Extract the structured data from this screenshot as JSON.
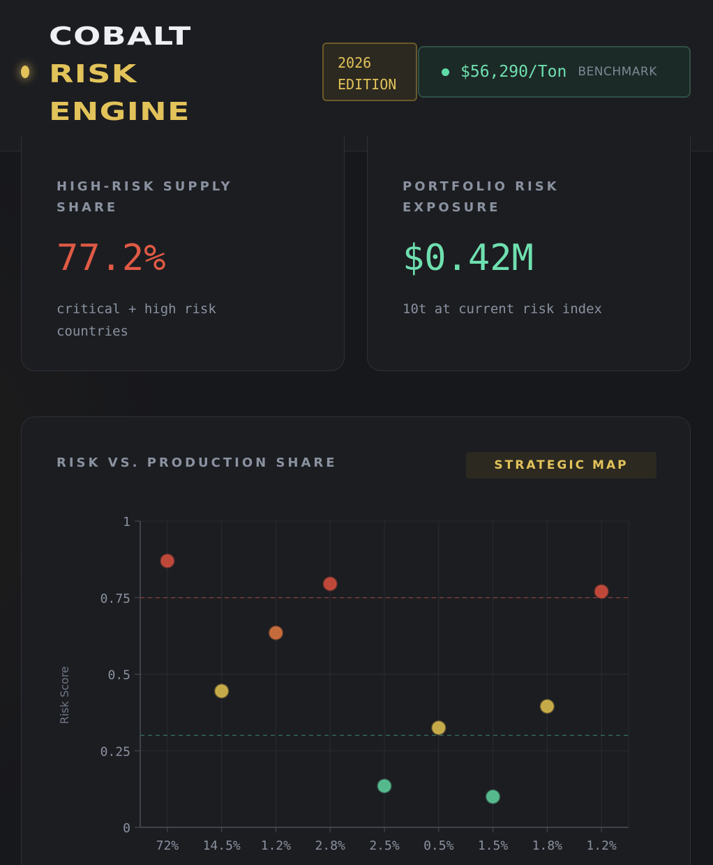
{
  "header": {
    "brand_line1": "COBALT",
    "brand_line2": "RISK",
    "brand_line3": "ENGINE",
    "edition_line1": "2026",
    "edition_line2": "EDITION",
    "benchmark_price": "$56,290/Ton",
    "benchmark_label": "BENCHMARK"
  },
  "kpis": [
    {
      "title": "HIGH-RISK SUPPLY SHARE",
      "value": "77.2%",
      "subtitle": "critical + high risk countries",
      "color": "#e05a45"
    },
    {
      "title": "PORTFOLIO RISK EXPOSURE",
      "value": "$0.42M",
      "subtitle": "10t at current risk index",
      "color": "#6fe0b0"
    }
  ],
  "chart_section": {
    "title": "RISK VS. PRODUCTION SHARE",
    "badge": "STRATEGIC MAP"
  },
  "chart_data": {
    "type": "scatter",
    "ylabel": "Risk Score",
    "ylim": [
      0,
      1
    ],
    "yticks": [
      "0",
      "0.25",
      "0.5",
      "0.75",
      "1"
    ],
    "categories": [
      "72%",
      "14.5%",
      "1.2%",
      "2.8%",
      "2.5%",
      "0.5%",
      "1.5%",
      "1.8%",
      "1.2%"
    ],
    "values": [
      0.87,
      0.445,
      0.635,
      0.795,
      0.135,
      0.325,
      0.1,
      0.395,
      0.77
    ],
    "point_colors": [
      "#d9503e",
      "#e2c24f",
      "#e0793f",
      "#d9503e",
      "#5fd3a0",
      "#e2c24f",
      "#5fd3a0",
      "#e2c24f",
      "#d9503e"
    ],
    "reference_lines": [
      {
        "y": 0.75,
        "color": "#7a3b3b"
      },
      {
        "y": 0.3,
        "color": "#2f6657"
      }
    ],
    "grid": true
  }
}
